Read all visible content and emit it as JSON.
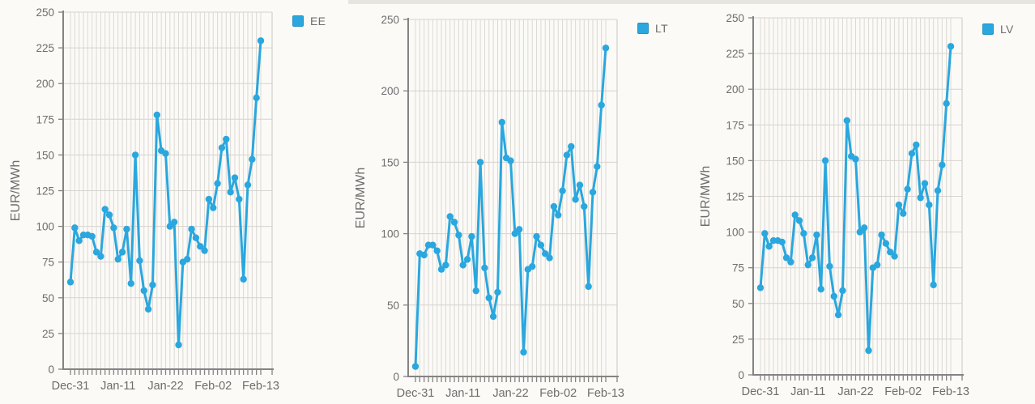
{
  "page": {
    "background": "#fbfaf7",
    "top_strip_color": "#e3e0dc"
  },
  "shared": {
    "y_axis_label": "EUR/MWh",
    "unit": "EUR/MWh",
    "x_labels_shown": [
      "Dec-31",
      "Jan-11",
      "Jan-22",
      "Feb-02",
      "Feb-13"
    ],
    "line_color": "#2aa7de",
    "axis_color": "#848484",
    "text_color": "#6d6d6d",
    "grid_color_vertical": "#dcd9d4",
    "grid_color_horizontal": "#d8d3ce",
    "legend_position": "top-right"
  },
  "chart_data": [
    {
      "type": "line",
      "legend": "EE",
      "title": "",
      "xlabel": "",
      "ylabel": "EUR/MWh",
      "ylim": [
        0,
        250
      ],
      "y_ticks": [
        0,
        25,
        50,
        75,
        100,
        125,
        150,
        175,
        200,
        225,
        250
      ],
      "grid": true,
      "x": [
        "Dec-31",
        "Jan-01",
        "Jan-02",
        "Jan-03",
        "Jan-04",
        "Jan-05",
        "Jan-06",
        "Jan-07",
        "Jan-08",
        "Jan-09",
        "Jan-10",
        "Jan-11",
        "Jan-12",
        "Jan-13",
        "Jan-14",
        "Jan-15",
        "Jan-16",
        "Jan-17",
        "Jan-18",
        "Jan-19",
        "Jan-20",
        "Jan-21",
        "Jan-22",
        "Jan-23",
        "Jan-24",
        "Jan-25",
        "Jan-26",
        "Jan-27",
        "Jan-28",
        "Jan-29",
        "Jan-30",
        "Jan-31",
        "Feb-01",
        "Feb-02",
        "Feb-03",
        "Feb-04",
        "Feb-05",
        "Feb-06",
        "Feb-07",
        "Feb-08",
        "Feb-09",
        "Feb-10",
        "Feb-11",
        "Feb-12",
        "Feb-13"
      ],
      "x_tick_labels": [
        "Dec-31",
        "Jan-11",
        "Jan-22",
        "Feb-02",
        "Feb-13"
      ],
      "values": [
        61,
        99,
        90,
        94,
        94,
        93,
        82,
        79,
        112,
        108,
        99,
        77,
        82,
        98,
        60,
        150,
        76,
        55,
        42,
        59,
        178,
        153,
        151,
        100,
        103,
        17,
        75,
        77,
        98,
        92,
        86,
        83,
        119,
        113,
        130,
        155,
        161,
        124,
        134,
        119,
        63,
        129,
        147,
        190,
        230
      ]
    },
    {
      "type": "line",
      "legend": "LT",
      "title": "",
      "xlabel": "",
      "ylabel": "EUR/MWh",
      "ylim": [
        0,
        250
      ],
      "y_ticks": [
        0,
        50,
        100,
        150,
        200,
        250
      ],
      "grid": true,
      "x": [
        "Dec-31",
        "Jan-01",
        "Jan-02",
        "Jan-03",
        "Jan-04",
        "Jan-05",
        "Jan-06",
        "Jan-07",
        "Jan-08",
        "Jan-09",
        "Jan-10",
        "Jan-11",
        "Jan-12",
        "Jan-13",
        "Jan-14",
        "Jan-15",
        "Jan-16",
        "Jan-17",
        "Jan-18",
        "Jan-19",
        "Jan-20",
        "Jan-21",
        "Jan-22",
        "Jan-23",
        "Jan-24",
        "Jan-25",
        "Jan-26",
        "Jan-27",
        "Jan-28",
        "Jan-29",
        "Jan-30",
        "Jan-31",
        "Feb-01",
        "Feb-02",
        "Feb-03",
        "Feb-04",
        "Feb-05",
        "Feb-06",
        "Feb-07",
        "Feb-08",
        "Feb-09",
        "Feb-10",
        "Feb-11",
        "Feb-12",
        "Feb-13"
      ],
      "x_tick_labels": [
        "Dec-31",
        "Jan-11",
        "Jan-22",
        "Feb-02",
        "Feb-13"
      ],
      "values": [
        7,
        86,
        85,
        92,
        92,
        88,
        75,
        78,
        112,
        108,
        99,
        78,
        82,
        98,
        60,
        150,
        76,
        55,
        42,
        59,
        178,
        153,
        151,
        100,
        103,
        17,
        75,
        77,
        98,
        92,
        86,
        83,
        119,
        113,
        130,
        155,
        161,
        124,
        134,
        119,
        63,
        129,
        147,
        190,
        230
      ]
    },
    {
      "type": "line",
      "legend": "LV",
      "title": "",
      "xlabel": "",
      "ylabel": "EUR/MWh",
      "ylim": [
        0,
        250
      ],
      "y_ticks": [
        0,
        25,
        50,
        75,
        100,
        125,
        150,
        175,
        200,
        225,
        250
      ],
      "grid": true,
      "x": [
        "Dec-31",
        "Jan-01",
        "Jan-02",
        "Jan-03",
        "Jan-04",
        "Jan-05",
        "Jan-06",
        "Jan-07",
        "Jan-08",
        "Jan-09",
        "Jan-10",
        "Jan-11",
        "Jan-12",
        "Jan-13",
        "Jan-14",
        "Jan-15",
        "Jan-16",
        "Jan-17",
        "Jan-18",
        "Jan-19",
        "Jan-20",
        "Jan-21",
        "Jan-22",
        "Jan-23",
        "Jan-24",
        "Jan-25",
        "Jan-26",
        "Jan-27",
        "Jan-28",
        "Jan-29",
        "Jan-30",
        "Jan-31",
        "Feb-01",
        "Feb-02",
        "Feb-03",
        "Feb-04",
        "Feb-05",
        "Feb-06",
        "Feb-07",
        "Feb-08",
        "Feb-09",
        "Feb-10",
        "Feb-11",
        "Feb-12",
        "Feb-13"
      ],
      "x_tick_labels": [
        "Dec-31",
        "Jan-11",
        "Jan-22",
        "Feb-02",
        "Feb-13"
      ],
      "values": [
        61,
        99,
        90,
        94,
        94,
        93,
        82,
        79,
        112,
        108,
        99,
        77,
        82,
        98,
        60,
        150,
        76,
        55,
        42,
        59,
        178,
        153,
        151,
        100,
        103,
        17,
        75,
        77,
        98,
        92,
        86,
        83,
        119,
        113,
        130,
        155,
        161,
        124,
        134,
        119,
        63,
        129,
        147,
        190,
        230
      ]
    }
  ]
}
